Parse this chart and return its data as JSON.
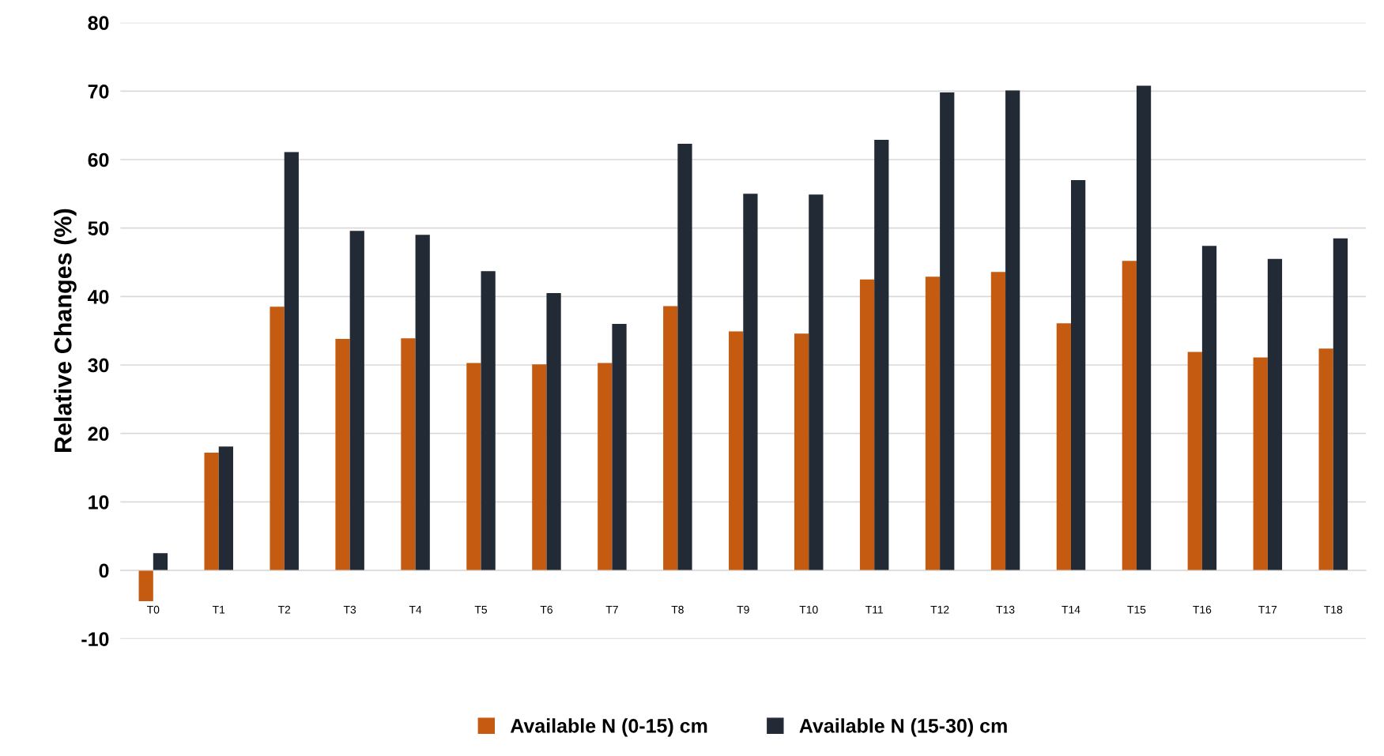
{
  "chart_data": {
    "type": "bar",
    "ylabel": "Relative Changes (%)",
    "categories": [
      "T0",
      "T1",
      "T2",
      "T3",
      "T4",
      "T5",
      "T6",
      "T7",
      "T8",
      "T9",
      "T10",
      "T11",
      "T12",
      "T13",
      "T14",
      "T15",
      "T16",
      "T17",
      "T18"
    ],
    "series": [
      {
        "name": "Available N (0-15) cm",
        "color": "#c55a11",
        "values": [
          -4.5,
          17.2,
          38.5,
          33.8,
          33.9,
          30.3,
          30.1,
          30.3,
          38.6,
          34.9,
          34.6,
          42.5,
          42.9,
          43.6,
          36.1,
          45.2,
          31.9,
          31.1,
          32.4
        ]
      },
      {
        "name": "Available N (15-30) cm",
        "color": "#222a35",
        "values": [
          2.5,
          18.1,
          61.1,
          49.6,
          49.0,
          43.7,
          40.5,
          36.0,
          62.3,
          55.0,
          54.9,
          62.9,
          69.8,
          70.1,
          57.0,
          70.8,
          47.4,
          45.5,
          48.5
        ]
      }
    ],
    "ylim": [
      -10,
      80
    ],
    "yticks": [
      -10,
      0,
      10,
      20,
      30,
      40,
      50,
      60,
      70,
      80
    ],
    "grid": "y",
    "legend": "bottom"
  }
}
